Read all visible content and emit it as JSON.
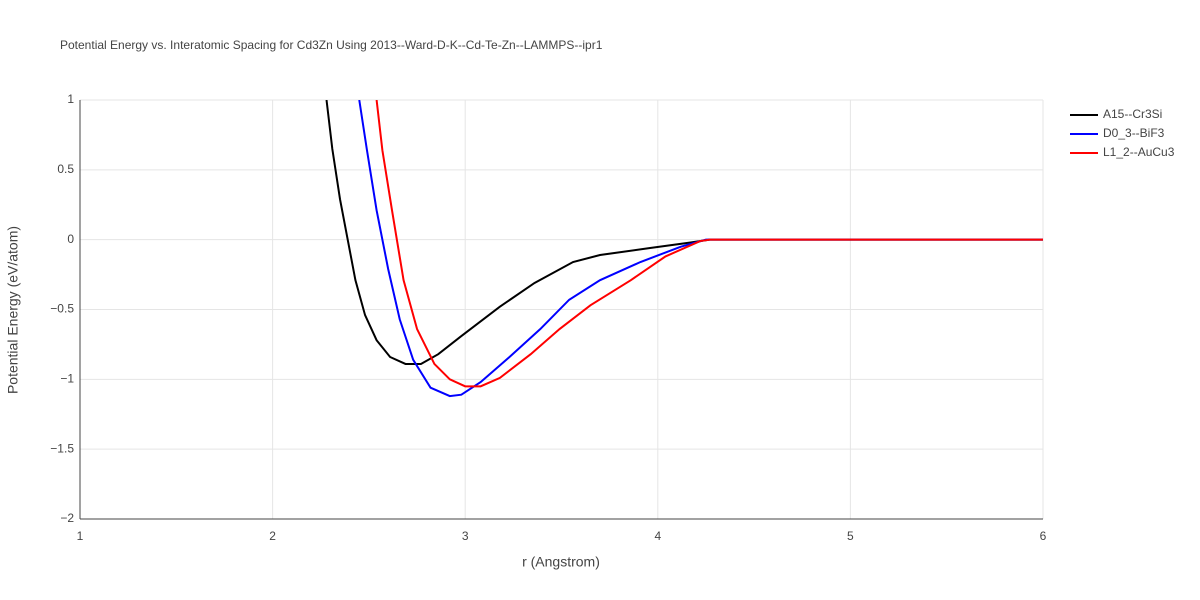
{
  "chart_data": {
    "type": "line",
    "title": "Potential Energy vs. Interatomic Spacing for Cd3Zn Using 2013--Ward-D-K--Cd-Te-Zn--LAMMPS--ipr1",
    "xlabel": "r (Angstrom)",
    "ylabel": "Potential Energy (eV/atom)",
    "xlim": [
      1,
      6
    ],
    "ylim": [
      -2,
      1
    ],
    "xticks": [
      1,
      2,
      3,
      4,
      5,
      6
    ],
    "yticks": [
      1,
      0.5,
      0,
      {
        "value": -0.5,
        "label": "−0.5"
      },
      {
        "value": -1,
        "label": "−1"
      },
      {
        "value": -1.5,
        "label": "−1.5"
      },
      {
        "value": -2,
        "label": "−2"
      }
    ],
    "grid": true,
    "legend": "top-right",
    "series": [
      {
        "name": "A15--Cr3Si",
        "color": "#000000",
        "x": [
          2.28,
          2.31,
          2.35,
          2.39,
          2.43,
          2.48,
          2.54,
          2.61,
          2.69,
          2.77,
          2.86,
          2.98,
          3.18,
          3.36,
          3.56,
          3.7,
          3.96,
          4.17,
          4.27,
          6
        ],
        "values": [
          1,
          0.65,
          0.29,
          0,
          -0.29,
          -0.54,
          -0.72,
          -0.84,
          -0.89,
          -0.89,
          -0.82,
          -0.69,
          -0.48,
          -0.31,
          -0.16,
          -0.11,
          -0.06,
          -0.02,
          0,
          0
        ]
      },
      {
        "name": "D0_3--BiF3",
        "color": "#0000ff",
        "x": [
          2.45,
          2.49,
          2.54,
          2.6,
          2.66,
          2.73,
          2.82,
          2.92,
          2.98,
          3.08,
          3.23,
          3.39,
          3.54,
          3.7,
          3.91,
          4.12,
          4.25,
          6
        ],
        "values": [
          1,
          0.64,
          0.21,
          -0.21,
          -0.57,
          -0.86,
          -1.06,
          -1.12,
          -1.11,
          -1.02,
          -0.84,
          -0.64,
          -0.43,
          -0.29,
          -0.16,
          -0.05,
          0,
          0
        ]
      },
      {
        "name": "L1_2--AuCu3",
        "color": "#ff0000",
        "x": [
          2.54,
          2.57,
          2.62,
          2.68,
          2.75,
          2.84,
          2.92,
          3.0,
          3.08,
          3.18,
          3.34,
          3.49,
          3.65,
          3.86,
          4.04,
          4.22,
          4.27,
          6
        ],
        "values": [
          1,
          0.64,
          0.21,
          -0.29,
          -0.64,
          -0.89,
          -1.0,
          -1.05,
          -1.05,
          -0.99,
          -0.82,
          -0.64,
          -0.47,
          -0.29,
          -0.12,
          -0.01,
          0,
          0
        ]
      }
    ]
  }
}
